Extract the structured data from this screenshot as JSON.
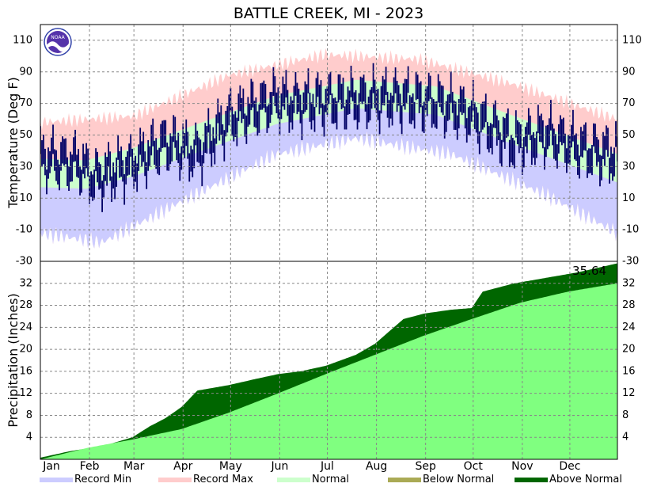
{
  "title": "BATTLE CREEK, MI - 2023",
  "logo_text": "NOAA",
  "colors": {
    "record_min": "#ccccff",
    "record_max": "#ffcccc",
    "normal": "#ccffcc",
    "below_normal": "#aaaa55",
    "above_normal": "#006600",
    "observed_temp": "#000066",
    "normal_precip": "#80ff80"
  },
  "legend": [
    {
      "label": "Record Min",
      "color": "#ccccff"
    },
    {
      "label": "Record Max",
      "color": "#ffcccc"
    },
    {
      "label": "Normal",
      "color": "#ccffcc"
    },
    {
      "label": "Below Normal",
      "color": "#aaaa55"
    },
    {
      "label": "Above Normal",
      "color": "#006600"
    }
  ],
  "chart_data": [
    {
      "type": "area",
      "ylabel": "Temperature (Deg F)",
      "ylim": [
        -30,
        120
      ],
      "yticks": [
        110,
        90,
        70,
        50,
        30,
        10,
        -10,
        -30
      ],
      "grid": true,
      "x_months": [
        "Jan",
        "Feb",
        "Mar",
        "Apr",
        "May",
        "Jun",
        "Jul",
        "Aug",
        "Sep",
        "Oct",
        "Nov",
        "Dec"
      ],
      "series": [
        {
          "name": "Record Max",
          "x": [
            1,
            60,
            120,
            180,
            240,
            300,
            365
          ],
          "values": [
            58,
            62,
            88,
            101,
            98,
            82,
            60
          ]
        },
        {
          "name": "Record Min",
          "x": [
            1,
            40,
            90,
            150,
            200,
            260,
            320,
            365
          ],
          "values": [
            -12,
            -18,
            8,
            38,
            48,
            38,
            12,
            -12
          ]
        },
        {
          "name": "Normal",
          "x": [
            1,
            30,
            60,
            100,
            150,
            200,
            250,
            300,
            365
          ],
          "values": [
            33,
            32,
            40,
            55,
            73,
            83,
            79,
            60,
            36
          ]
        },
        {
          "name": "Observed",
          "x": [
            1,
            25,
            35,
            60,
            80,
            100,
            120,
            150,
            160,
            200,
            230,
            250,
            270,
            300,
            320,
            345,
            365
          ],
          "values": [
            35,
            32,
            22,
            32,
            45,
            38,
            60,
            72,
            70,
            72,
            73,
            70,
            64,
            45,
            50,
            40,
            37
          ]
        }
      ]
    },
    {
      "type": "area",
      "ylabel": "Precipitation (Inches)",
      "ylim": [
        0,
        36
      ],
      "yticks": [
        32,
        28,
        24,
        20,
        16,
        12,
        8,
        4
      ],
      "grid": true,
      "annotation": "35.64",
      "series": [
        {
          "name": "Normal",
          "x": [
            1,
            31,
            59,
            90,
            120,
            151,
            181,
            212,
            243,
            273,
            304,
            334,
            365
          ],
          "values": [
            0,
            2.1,
            3.6,
            5.5,
            8.5,
            12.0,
            15.5,
            19.0,
            22.5,
            25.5,
            28.5,
            30.5,
            32.0
          ]
        },
        {
          "name": "Observed",
          "x": [
            1,
            20,
            31,
            45,
            59,
            70,
            80,
            90,
            100,
            120,
            135,
            151,
            165,
            181,
            200,
            212,
            220,
            230,
            243,
            260,
            273,
            280,
            300,
            320,
            340,
            365
          ],
          "values": [
            0.3,
            1.5,
            2.0,
            2.8,
            4.0,
            6.0,
            7.5,
            9.5,
            12.5,
            13.5,
            14.5,
            15.5,
            16.0,
            17.0,
            19.0,
            21.0,
            23.0,
            25.5,
            26.5,
            27.2,
            27.5,
            30.5,
            32.0,
            33.0,
            34.0,
            35.64
          ]
        }
      ]
    }
  ]
}
